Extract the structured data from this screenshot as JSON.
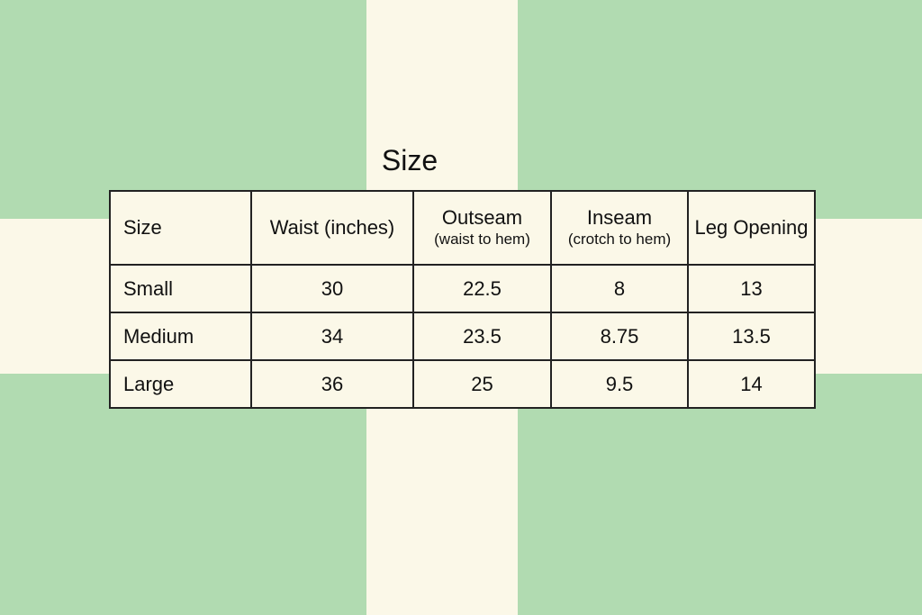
{
  "title": "Size",
  "table": {
    "header": [
      {
        "label": "Size"
      },
      {
        "label": "Waist (inches)"
      },
      {
        "label": "Outseam",
        "note": "(waist to hem)"
      },
      {
        "label": "Inseam",
        "note": "(crotch to hem)"
      },
      {
        "label": "Leg Opening"
      }
    ],
    "rows": [
      [
        "Small",
        30,
        22.5,
        8,
        13
      ],
      [
        "Medium",
        34,
        23.5,
        8.75,
        13.5
      ],
      [
        "Large",
        36,
        25,
        9.5,
        14
      ]
    ]
  }
}
